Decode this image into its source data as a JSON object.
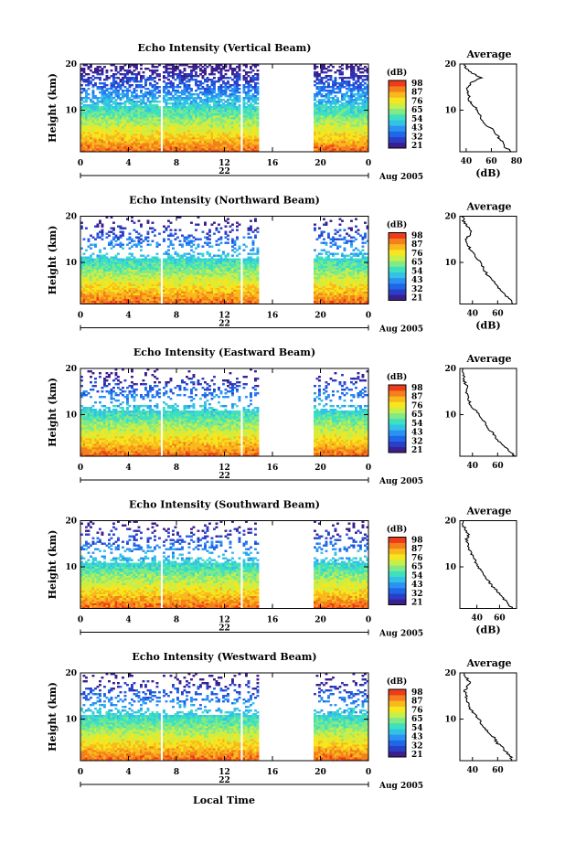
{
  "colormap": [
    "#3b1f8c",
    "#2a3fc8",
    "#1f66e8",
    "#2a93f2",
    "#33c2e6",
    "#3ee0c0",
    "#7fea86",
    "#c8ee4a",
    "#f5e61e",
    "#f9b81c",
    "#f4801c",
    "#ee3b1a"
  ],
  "colorbar_label": "(dB)",
  "panel_x_label": "Local Time",
  "chart_data": [
    {
      "type": "heatmap",
      "title": "Echo Intensity (Vertical Beam)",
      "ylabel": "Height (km)",
      "x_ticks": [
        "0",
        "4",
        "8",
        "12",
        "16",
        "20",
        "0"
      ],
      "xlim": [
        0,
        24
      ],
      "y_ticks": [
        "20",
        "10"
      ],
      "ylim": [
        1,
        20
      ],
      "date_day": "22",
      "date_label": "Aug 2005",
      "data_gaps": [
        [
          6.6,
          6.9
        ],
        [
          13.3,
          13.5
        ],
        [
          14.8,
          19.5
        ]
      ],
      "colorbar_ticks": [
        "98",
        "87",
        "76",
        "65",
        "54",
        "43",
        "32",
        "21"
      ],
      "profile": {
        "title": "Average",
        "xlabel": "(dB)",
        "x_ticks": [
          "40",
          "60",
          "80"
        ],
        "xlim": [
          35,
          80
        ],
        "y_ticks": [
          "20",
          "10"
        ],
        "heights": [
          1,
          2,
          3,
          4,
          5,
          6,
          7,
          8,
          9,
          10,
          11,
          12,
          13,
          14,
          15,
          16,
          17,
          18,
          19,
          20
        ],
        "values": [
          76,
          71,
          70,
          66,
          63,
          60,
          55,
          52,
          51,
          49,
          46,
          43,
          42,
          41,
          41,
          44,
          52,
          45,
          40,
          39
        ]
      }
    },
    {
      "type": "heatmap",
      "title": "Echo Intensity (Northward Beam)",
      "ylabel": "Height (km)",
      "x_ticks": [
        "0",
        "4",
        "8",
        "12",
        "16",
        "20",
        "0"
      ],
      "xlim": [
        0,
        24
      ],
      "y_ticks": [
        "20",
        "10"
      ],
      "ylim": [
        1,
        20
      ],
      "date_day": "22",
      "date_label": "Aug 2005",
      "data_gaps": [
        [
          6.6,
          6.9
        ],
        [
          13.3,
          13.5
        ],
        [
          14.8,
          19.5
        ]
      ],
      "colorbar_ticks": [
        "98",
        "87",
        "76",
        "65",
        "54",
        "43",
        "32",
        "21"
      ],
      "profile": {
        "title": "Average",
        "xlabel": "(dB)",
        "x_ticks": [
          "40",
          "60"
        ],
        "xlim": [
          30,
          75
        ],
        "y_ticks": [
          "20",
          "10"
        ],
        "heights": [
          1,
          2,
          3,
          4,
          5,
          6,
          7,
          8,
          9,
          10,
          11,
          12,
          13,
          14,
          15,
          16,
          17,
          18,
          19,
          20
        ],
        "values": [
          72,
          70,
          66,
          62,
          60,
          57,
          53,
          50,
          48,
          46,
          43,
          40,
          38,
          36,
          35,
          38,
          39,
          35,
          33,
          32
        ]
      }
    },
    {
      "type": "heatmap",
      "title": "Echo Intensity (Eastward Beam)",
      "ylabel": "Height (km)",
      "x_ticks": [
        "0",
        "4",
        "8",
        "12",
        "16",
        "20",
        "0"
      ],
      "xlim": [
        0,
        24
      ],
      "y_ticks": [
        "20",
        "10"
      ],
      "ylim": [
        1,
        20
      ],
      "date_day": "22",
      "date_label": "Aug 2005",
      "data_gaps": [
        [
          6.6,
          6.9
        ],
        [
          13.3,
          13.5
        ],
        [
          14.8,
          19.5
        ]
      ],
      "colorbar_ticks": [
        "98",
        "87",
        "76",
        "65",
        "54",
        "43",
        "32",
        "21"
      ],
      "profile": {
        "title": "Average",
        "xlabel": "",
        "x_ticks": [
          "40",
          "60"
        ],
        "xlim": [
          30,
          75
        ],
        "y_ticks": [
          "20",
          "10"
        ],
        "heights": [
          1,
          2,
          3,
          4,
          5,
          6,
          7,
          8,
          9,
          10,
          11,
          12,
          13,
          14,
          15,
          16,
          17,
          18,
          19,
          20
        ],
        "values": [
          73,
          70,
          66,
          62,
          58,
          56,
          52,
          50,
          48,
          45,
          42,
          39,
          37,
          36,
          35,
          36,
          34,
          33,
          33,
          32
        ]
      }
    },
    {
      "type": "heatmap",
      "title": "Echo Intensity (Southward Beam)",
      "ylabel": "Height (km)",
      "x_ticks": [
        "0",
        "4",
        "8",
        "12",
        "16",
        "20",
        "0"
      ],
      "xlim": [
        0,
        24
      ],
      "y_ticks": [
        "20",
        "10"
      ],
      "ylim": [
        1,
        20
      ],
      "date_day": "22",
      "date_label": "Aug 2005",
      "data_gaps": [
        [
          6.6,
          6.9
        ],
        [
          13.3,
          13.5
        ],
        [
          14.8,
          19.5
        ]
      ],
      "colorbar_ticks": [
        "98",
        "87",
        "76",
        "65",
        "54",
        "43",
        "32",
        "21"
      ],
      "profile": {
        "title": "Average",
        "xlabel": "(dB)",
        "x_ticks": [
          "40",
          "60"
        ],
        "xlim": [
          25,
          75
        ],
        "y_ticks": [
          "20",
          "10"
        ],
        "heights": [
          1,
          2,
          3,
          4,
          5,
          6,
          7,
          8,
          9,
          10,
          11,
          12,
          13,
          14,
          15,
          16,
          17,
          18,
          19,
          20
        ],
        "values": [
          71,
          68,
          64,
          60,
          57,
          53,
          50,
          47,
          44,
          41,
          39,
          37,
          35,
          33,
          32,
          31,
          33,
          30,
          28,
          27
        ]
      }
    },
    {
      "type": "heatmap",
      "title": "Echo Intensity (Westward Beam)",
      "ylabel": "Height (km)",
      "x_ticks": [
        "0",
        "4",
        "8",
        "12",
        "16",
        "20",
        "0"
      ],
      "xlim": [
        0,
        24
      ],
      "y_ticks": [
        "20",
        "10"
      ],
      "ylim": [
        1,
        20
      ],
      "date_day": "22",
      "date_label": "Aug 2005",
      "data_gaps": [
        [
          6.6,
          6.9
        ],
        [
          13.3,
          13.5
        ],
        [
          14.8,
          19.5
        ]
      ],
      "colorbar_ticks": [
        "98",
        "87",
        "76",
        "65",
        "54",
        "43",
        "32",
        "21"
      ],
      "profile": {
        "title": "Average",
        "xlabel": "",
        "x_ticks": [
          "40",
          "60"
        ],
        "xlim": [
          30,
          75
        ],
        "y_ticks": [
          "20",
          "10"
        ],
        "heights": [
          1,
          2,
          3,
          4,
          5,
          6,
          7,
          8,
          9,
          10,
          11,
          12,
          13,
          14,
          15,
          16,
          17,
          18,
          19,
          20
        ],
        "values": [
          72,
          70,
          66,
          63,
          59,
          57,
          53,
          50,
          47,
          45,
          42,
          39,
          37,
          36,
          35,
          34,
          36,
          38,
          35,
          33
        ]
      }
    }
  ]
}
